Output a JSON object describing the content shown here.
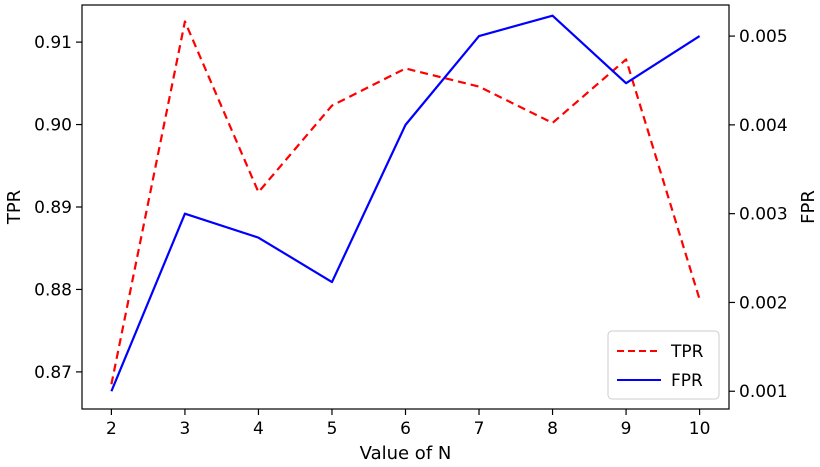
{
  "chart_data": {
    "type": "line",
    "x": [
      2,
      3,
      4,
      5,
      6,
      7,
      8,
      9,
      10
    ],
    "xlabel": "Value of N",
    "xlim": [
      1.6,
      10.4
    ],
    "xticks": [
      "2",
      "3",
      "4",
      "5",
      "6",
      "7",
      "8",
      "9",
      "10"
    ],
    "y_left": {
      "label": "TPR",
      "lim": [
        0.8655,
        0.9145
      ],
      "ticks": [
        0.87,
        0.88,
        0.89,
        0.9,
        0.91
      ],
      "tick_labels": [
        "0.87",
        "0.88",
        "0.89",
        "0.90",
        "0.91"
      ]
    },
    "y_right": {
      "label": "FPR",
      "lim": [
        0.0008,
        0.00535
      ],
      "ticks": [
        0.001,
        0.002,
        0.003,
        0.004,
        0.005
      ],
      "tick_labels": [
        "0.001",
        "0.002",
        "0.003",
        "0.004",
        "0.005"
      ]
    },
    "series": [
      {
        "name": "TPR",
        "axis": "left",
        "color": "#ff0000",
        "style": "dashed",
        "values": [
          0.8685,
          0.9125,
          0.8918,
          0.9023,
          0.9068,
          0.9046,
          0.9002,
          0.9079,
          0.8788
        ]
      },
      {
        "name": "FPR",
        "axis": "right",
        "color": "#0000ff",
        "style": "solid",
        "values": [
          0.001,
          0.003,
          0.00273,
          0.00223,
          0.004,
          0.005,
          0.00523,
          0.00447,
          0.005
        ]
      }
    ],
    "legend": "lower-right",
    "grid": false
  }
}
